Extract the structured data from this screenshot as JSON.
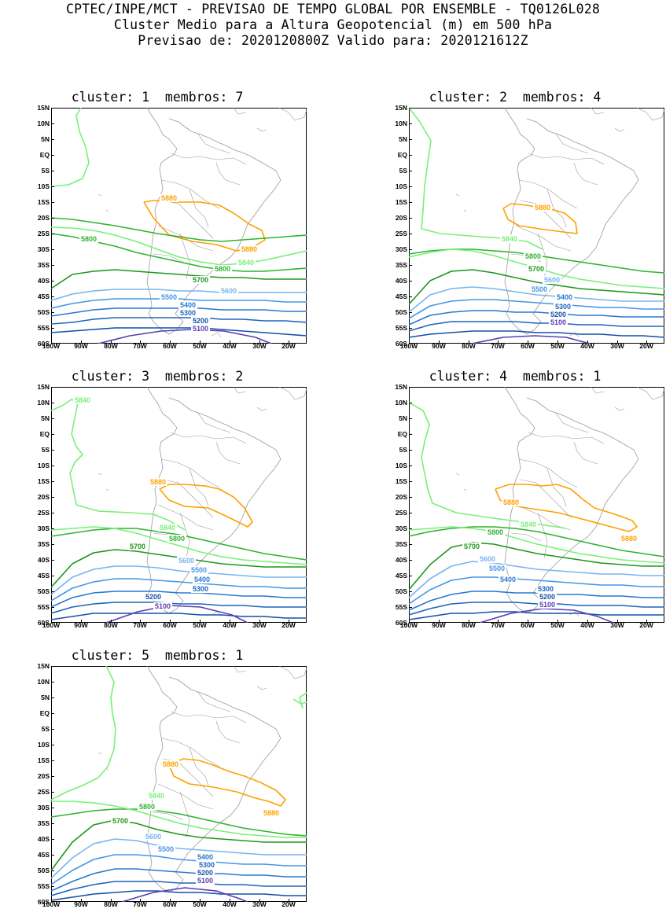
{
  "header": {
    "line1": "CPTEC/INPE/MCT - PREVISAO DE TEMPO GLOBAL POR ENSEMBLE - TQ0126L028",
    "line2": "Cluster Medio para a Altura Geopotencial (m) em 500 hPa",
    "line3": "Previsao de: 2020120800Z   Valido para: 2020121612Z"
  },
  "axes": {
    "lat_labels": [
      "15N",
      "10N",
      "5N",
      "EQ",
      "5S",
      "10S",
      "15S",
      "20S",
      "25S",
      "30S",
      "35S",
      "40S",
      "45S",
      "50S",
      "55S",
      "60S"
    ],
    "lon_labels": [
      "100W",
      "90W",
      "80W",
      "70W",
      "60W",
      "50W",
      "40W",
      "30W",
      "20W"
    ]
  },
  "colors": {
    "c5880": "#ffa000",
    "c5840": "#78f078",
    "c5800": "#2db42d",
    "c5700": "#1e961e",
    "c5600": "#78b4f0",
    "c5500": "#4696e6",
    "c5400": "#2878d2",
    "c5300": "#1e64be",
    "c5200": "#1450aa",
    "c5100": "#5a3cb4",
    "coast": "#9a9a9a"
  },
  "panels": [
    {
      "title": "cluster: 1  membros: 7",
      "labels": [
        "5880",
        "5880",
        "5800",
        "5840",
        "5800",
        "5700",
        "5600",
        "5500",
        "5400",
        "5300",
        "5200",
        "5100"
      ]
    },
    {
      "title": "cluster: 2  membros: 4",
      "labels": [
        "5880",
        "5840",
        "5800",
        "5700",
        "5600",
        "5500",
        "5400",
        "5300",
        "5200",
        "5100"
      ]
    },
    {
      "title": "cluster: 3  membros: 2",
      "labels": [
        "5840",
        "5880",
        "5840",
        "5800",
        "5700",
        "5600",
        "5500",
        "5400",
        "5300",
        "5200",
        "5100"
      ]
    },
    {
      "title": "cluster: 4  membros: 1",
      "labels": [
        "5880",
        "5880",
        "5840",
        "5800",
        "5700",
        "5600",
        "5500",
        "5400",
        "5300",
        "5200",
        "5100"
      ]
    },
    {
      "title": "cluster: 5  membros: 1",
      "labels": [
        "5880",
        "5880",
        "5840",
        "5800",
        "5700",
        "5600",
        "5500",
        "5400",
        "5300",
        "5200",
        "5100"
      ]
    }
  ]
}
